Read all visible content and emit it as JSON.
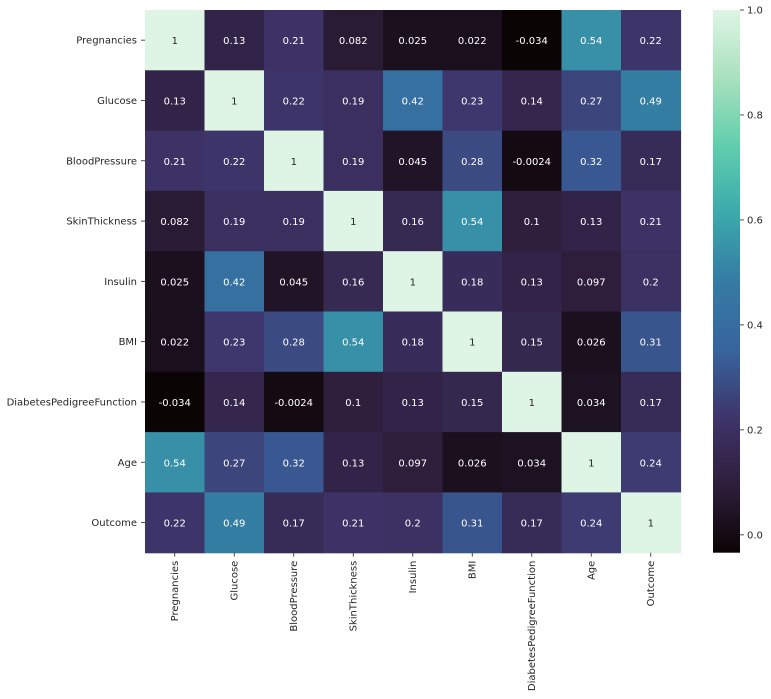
{
  "chart_data": {
    "type": "heatmap",
    "title": "",
    "xlabel": "",
    "ylabel": "",
    "rows": [
      "Pregnancies",
      "Glucose",
      "BloodPressure",
      "SkinThickness",
      "Insulin",
      "BMI",
      "DiabetesPedigreeFunction",
      "Age",
      "Outcome"
    ],
    "columns": [
      "Pregnancies",
      "Glucose",
      "BloodPressure",
      "SkinThickness",
      "Insulin",
      "BMI",
      "DiabetesPedigreeFunction",
      "Age",
      "Outcome"
    ],
    "values": [
      [
        1,
        0.13,
        0.21,
        0.082,
        0.025,
        0.022,
        -0.034,
        0.54,
        0.22
      ],
      [
        0.13,
        1,
        0.22,
        0.19,
        0.42,
        0.23,
        0.14,
        0.27,
        0.49
      ],
      [
        0.21,
        0.22,
        1,
        0.19,
        0.045,
        0.28,
        -0.0024,
        0.32,
        0.17
      ],
      [
        0.082,
        0.19,
        0.19,
        1,
        0.16,
        0.54,
        0.1,
        0.13,
        0.21
      ],
      [
        0.025,
        0.42,
        0.045,
        0.16,
        1,
        0.18,
        0.13,
        0.097,
        0.2
      ],
      [
        0.022,
        0.23,
        0.28,
        0.54,
        0.18,
        1,
        0.15,
        0.026,
        0.31
      ],
      [
        -0.034,
        0.14,
        -0.0024,
        0.1,
        0.13,
        0.15,
        1,
        0.034,
        0.17
      ],
      [
        0.54,
        0.27,
        0.32,
        0.13,
        0.097,
        0.026,
        0.034,
        1,
        0.24
      ],
      [
        0.22,
        0.49,
        0.17,
        0.21,
        0.2,
        0.31,
        0.17,
        0.24,
        1
      ]
    ],
    "annotations": [
      [
        "1",
        "0.13",
        "0.21",
        "0.082",
        "0.025",
        "0.022",
        "-0.034",
        "0.54",
        "0.22"
      ],
      [
        "0.13",
        "1",
        "0.22",
        "0.19",
        "0.42",
        "0.23",
        "0.14",
        "0.27",
        "0.49"
      ],
      [
        "0.21",
        "0.22",
        "1",
        "0.19",
        "0.045",
        "0.28",
        "-0.0024",
        "0.32",
        "0.17"
      ],
      [
        "0.082",
        "0.19",
        "0.19",
        "1",
        "0.16",
        "0.54",
        "0.1",
        "0.13",
        "0.21"
      ],
      [
        "0.025",
        "0.42",
        "0.045",
        "0.16",
        "1",
        "0.18",
        "0.13",
        "0.097",
        "0.2"
      ],
      [
        "0.022",
        "0.23",
        "0.28",
        "0.54",
        "0.18",
        "1",
        "0.15",
        "0.026",
        "0.31"
      ],
      [
        "-0.034",
        "0.14",
        "-0.0024",
        "0.1",
        "0.13",
        "0.15",
        "1",
        "0.034",
        "0.17"
      ],
      [
        "0.54",
        "0.27",
        "0.32",
        "0.13",
        "0.097",
        "0.026",
        "0.034",
        "1",
        "0.24"
      ],
      [
        "0.22",
        "0.49",
        "0.17",
        "0.21",
        "0.2",
        "0.31",
        "0.17",
        "0.24",
        "1"
      ]
    ],
    "colorscale": "mako",
    "vmin": -0.034,
    "vmax": 1,
    "colorbar_ticks": [
      "0.0",
      "0.2",
      "0.4",
      "0.6",
      "0.8",
      "1.0"
    ],
    "colorbar_tick_values": [
      0,
      0.2,
      0.4,
      0.6,
      0.8,
      1.0
    ],
    "colors": {
      "stops": [
        "#0b0405",
        "#2e1e3b",
        "#3e356b",
        "#37659e",
        "#357ba3",
        "#3aaaac",
        "#60ceac",
        "#a9e1bd",
        "#def5e5"
      ],
      "text_dark": "#262626",
      "text_light": "#ffffff"
    }
  }
}
